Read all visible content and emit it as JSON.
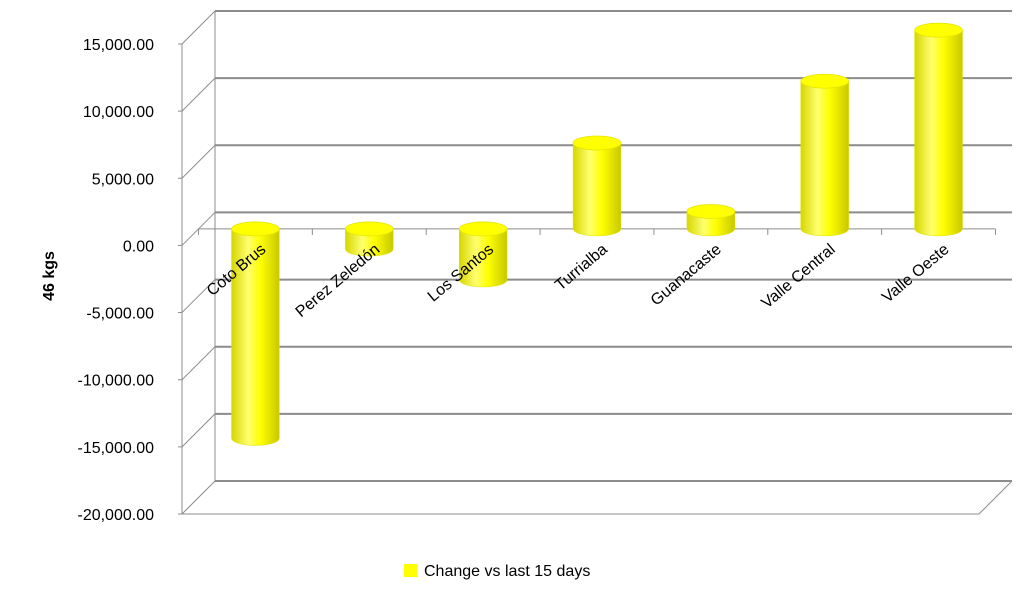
{
  "chart_data": {
    "type": "bar",
    "style": "3d-cylinder",
    "categories": [
      "Coto Brus",
      "Perez Zeledón",
      "Los Santos",
      "Turrialba",
      "Guanacaste",
      "Valle Central",
      "Valle Oeste"
    ],
    "series": [
      {
        "name": "Change vs last 15 days",
        "values": [
          -15600,
          -1500,
          -3800,
          6400,
          1300,
          11000,
          14800
        ],
        "color": "#ffff00"
      }
    ],
    "title": "",
    "xlabel": "",
    "ylabel": "46 kgs",
    "ylim": [
      -20000,
      15000
    ],
    "yticks": [
      15000,
      10000,
      5000,
      0,
      -5000,
      -10000,
      -15000,
      -20000
    ],
    "ytick_labels": [
      "15,000.00",
      "10,000.00",
      "5,000.00",
      "0.00",
      "-5,000.00",
      "-10,000.00",
      "-15,000.00",
      "-20,000.00"
    ],
    "grid": true,
    "legend_position": "bottom",
    "colors": {
      "gridline": "#8c8c8c",
      "bar": "#ffff00",
      "bar_edge": "#e0e000"
    }
  }
}
